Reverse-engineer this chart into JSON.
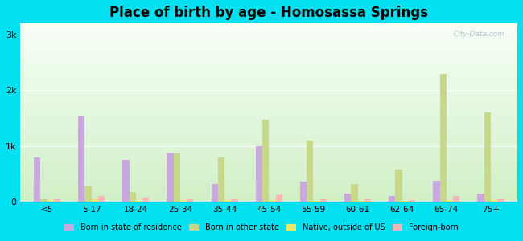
{
  "title": "Place of birth by age - Homosassa Springs",
  "categories": [
    "<5",
    "5-17",
    "18-24",
    "25-34",
    "35-44",
    "45-54",
    "55-59",
    "60-61",
    "62-64",
    "65-74",
    "75+"
  ],
  "series": {
    "born_in_state": [
      800,
      1550,
      750,
      880,
      320,
      1000,
      360,
      150,
      100,
      380,
      150
    ],
    "born_other_state": [
      50,
      280,
      180,
      870,
      800,
      1480,
      1100,
      320,
      580,
      2300,
      1600
    ],
    "native_outside_us": [
      30,
      40,
      20,
      30,
      30,
      30,
      20,
      20,
      20,
      30,
      25
    ],
    "foreign_born": [
      40,
      100,
      80,
      50,
      50,
      130,
      40,
      40,
      30,
      100,
      50
    ]
  },
  "colors": {
    "born_in_state": "#c9a8e0",
    "born_other_state": "#c8d88a",
    "native_outside_us": "#ece96a",
    "foreign_born": "#f5b8b8"
  },
  "legend_labels": [
    "Born in state of residence",
    "Born in other state",
    "Native, outside of US",
    "Foreign-born"
  ],
  "ylim": [
    0,
    3200
  ],
  "yticks": [
    0,
    1000,
    2000,
    3000
  ],
  "ytick_labels": [
    "0",
    "1k",
    "2k",
    "3k"
  ],
  "outer_background": "#00e0f0",
  "plot_bg_top": "#f8fef8",
  "plot_bg_bottom": "#d8efc8",
  "title_fontsize": 12,
  "watermark": "City-Data.com",
  "bar_width": 0.15
}
